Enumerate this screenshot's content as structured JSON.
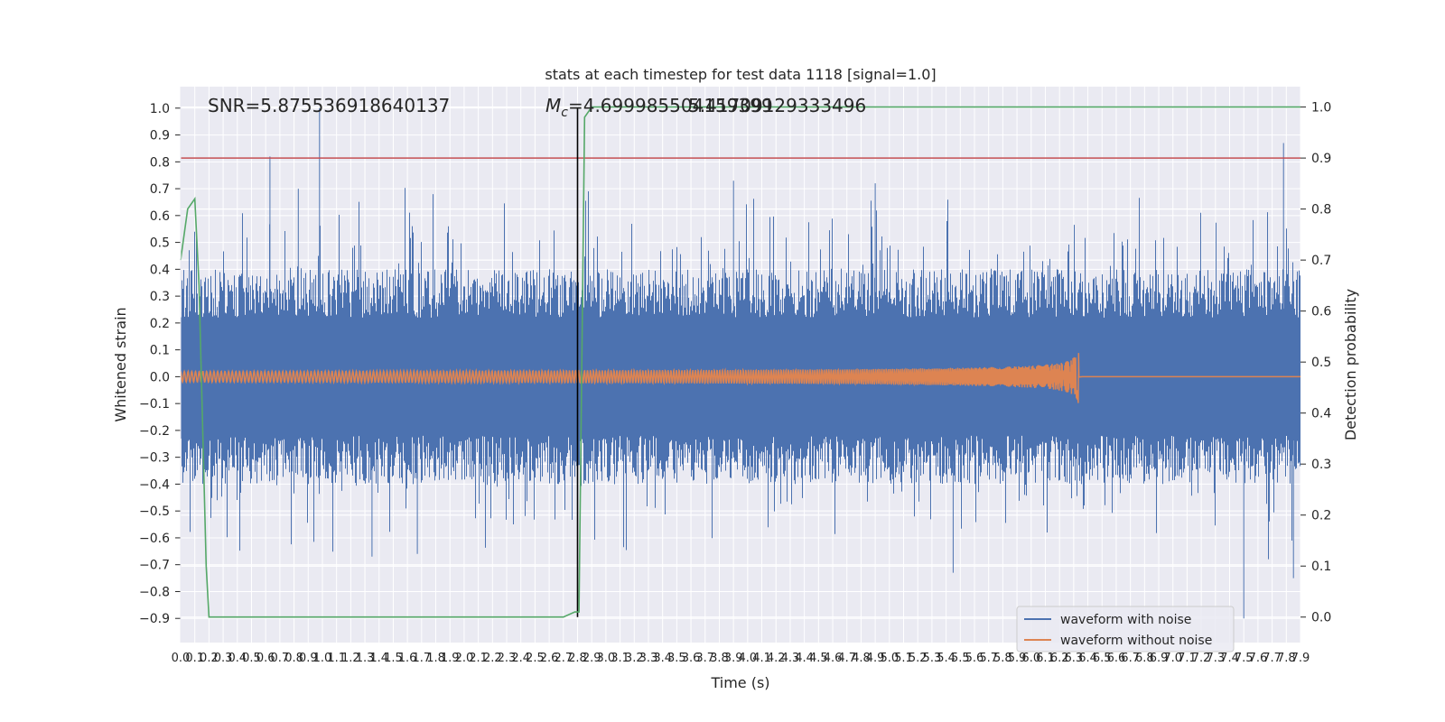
{
  "chart_data": {
    "type": "line",
    "title": "stats at each timestep for test data 1118 [signal=1.0]",
    "xlabel": "Time (s)",
    "ylabel": "Whitened strain",
    "y2label": "Detection probability",
    "xlim": [
      0.0,
      7.9
    ],
    "ylim": [
      -0.99,
      1.08
    ],
    "y2lim": [
      -0.05,
      1.04
    ],
    "x_ticks": [
      "0.0",
      "0.1",
      "0.2",
      "0.3",
      "0.4",
      "0.5",
      "0.6",
      "0.7",
      "0.8",
      "0.9",
      "1.0",
      "1.1",
      "1.2",
      "1.3",
      "1.4",
      "1.5",
      "1.6",
      "1.7",
      "1.8",
      "1.9",
      "2.0",
      "2.1",
      "2.2",
      "2.3",
      "2.4",
      "2.5",
      "2.6",
      "2.7",
      "2.8",
      "2.9",
      "3.0",
      "3.1",
      "3.2",
      "3.3",
      "3.4",
      "3.5",
      "3.6",
      "3.7",
      "3.8",
      "3.9",
      "4.0",
      "4.1",
      "4.2",
      "4.3",
      "4.4",
      "4.5",
      "4.6",
      "4.7",
      "4.8",
      "4.9",
      "5.0",
      "5.1",
      "5.2",
      "5.3",
      "5.4",
      "5.5",
      "5.6",
      "5.7",
      "5.8",
      "5.9",
      "6.0",
      "6.1",
      "6.2",
      "6.3",
      "6.4",
      "6.5",
      "6.6",
      "6.7",
      "6.8",
      "6.9",
      "7.0",
      "7.1",
      "7.2",
      "7.3",
      "7.4",
      "7.5",
      "7.6",
      "7.7",
      "7.8",
      "7.9"
    ],
    "y_ticks": [
      "1.0",
      "0.9",
      "0.8",
      "0.7",
      "0.6",
      "0.5",
      "0.4",
      "0.3",
      "0.2",
      "0.1",
      "0.0",
      "−0.1",
      "−0.2",
      "−0.3",
      "−0.4",
      "−0.5",
      "−0.6",
      "−0.7",
      "−0.8",
      "−0.9"
    ],
    "y_tick_values": [
      1.0,
      0.9,
      0.8,
      0.7,
      0.6,
      0.5,
      0.4,
      0.3,
      0.2,
      0.1,
      0.0,
      -0.1,
      -0.2,
      -0.3,
      -0.4,
      -0.5,
      -0.6,
      -0.7,
      -0.8,
      -0.9
    ],
    "y2_ticks": [
      "1.0",
      "0.9",
      "0.8",
      "0.7",
      "0.6",
      "0.5",
      "0.4",
      "0.3",
      "0.2",
      "0.1",
      "0.0"
    ],
    "y2_tick_values": [
      1.0,
      0.9,
      0.8,
      0.7,
      0.6,
      0.5,
      0.4,
      0.3,
      0.2,
      0.1,
      0.0
    ],
    "grid": true,
    "legend_position": "lower-right",
    "annotations": {
      "snr": "SNR=5.875536918640137",
      "mc_symbol": "M",
      "mc_sub": "c",
      "mc_value": "=4.699985504159399",
      "overlap": "5.41709129333496"
    },
    "series": [
      {
        "name": "waveform with noise",
        "color": "#4c72b0",
        "axis": "left",
        "description_range": [
          -0.9,
          1.0
        ]
      },
      {
        "name": "waveform without noise",
        "color": "#dd8452",
        "axis": "left",
        "chirp_start": 0.0,
        "chirp_merger": 6.34,
        "amplitude_start": 0.02,
        "amplitude_peak": 0.12
      },
      {
        "name": "detection probability",
        "color": "#55a868",
        "axis": "right",
        "x": [
          0.0,
          0.05,
          0.1,
          0.13,
          0.18,
          0.2,
          2.7,
          2.78,
          2.81,
          2.85,
          2.9,
          7.9
        ],
        "y": [
          0.7,
          0.8,
          0.82,
          0.65,
          0.1,
          0.0,
          0.0,
          0.01,
          0.01,
          0.98,
          1.0,
          1.0
        ]
      }
    ],
    "reference_lines": {
      "threshold_right_axis": 0.9,
      "threshold_color": "#c44e52",
      "vertical_time": 2.8,
      "vertical_color": "#000000"
    }
  }
}
